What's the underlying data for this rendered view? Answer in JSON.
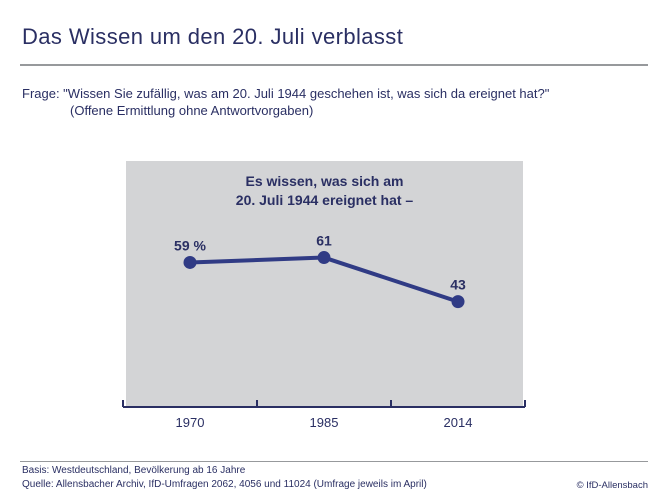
{
  "header": {
    "title": "Das Wissen um den 20. Juli verblasst",
    "question_line1": "Frage: \"Wissen Sie zufällig, was am 20. Juli 1944 geschehen ist, was sich da ereignet hat?\"",
    "question_line2": "(Offene Ermittlung ohne Antwortvorgaben)"
  },
  "chart_data": {
    "type": "line",
    "title_line1": "Es wissen, was sich am",
    "title_line2": "20. Juli 1944 ereignet hat –",
    "categories": [
      "1970",
      "1985",
      "2014"
    ],
    "values": [
      59,
      61,
      43
    ],
    "point_labels": [
      "59 %",
      "61",
      "43"
    ],
    "unit": "percent",
    "ylim": [
      0,
      100
    ],
    "grid": false,
    "legend": false,
    "xlabel": "",
    "ylabel": ""
  },
  "footer": {
    "basis": "Basis: Westdeutschland, Bevölkerung ab 16 Jahre",
    "quelle": "Quelle: Allensbacher Archiv, IfD-Umfragen 2062, 4056 und 11024 (Umfrage jeweils im April)",
    "copyright": "© IfD-Allensbach"
  },
  "colors": {
    "navy": "#2a2f63",
    "accent": "#303b85",
    "chart_bg": "#d3d4d6",
    "rule_gray": "#97999c"
  }
}
